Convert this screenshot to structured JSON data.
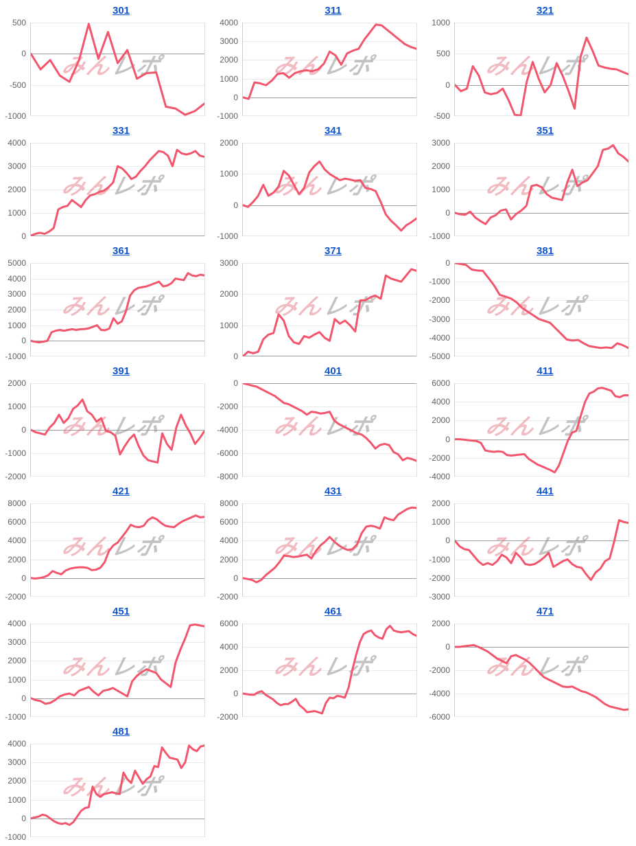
{
  "watermark": {
    "pink": "みん",
    "gray": "レポ"
  },
  "style": {
    "line_color": "#f2566d",
    "title_color": "#1155cc",
    "grid_color": "#e9e9e9",
    "zero_color": "#9e9e9e",
    "axis_color": "#cccccc",
    "tick_color": "#616161",
    "background": "#ffffff"
  },
  "chart_data": [
    {
      "type": "line",
      "title": "301",
      "xlabel": "",
      "ylabel": "",
      "yticks": [
        500,
        0,
        -500,
        -1000
      ],
      "ylim": [
        -1000,
        500
      ],
      "grid": true,
      "legend": "none",
      "values": [
        0,
        -250,
        -100,
        -350,
        -450,
        -100,
        480,
        -80,
        350,
        -150,
        60,
        -400,
        -310,
        -300,
        -850,
        -880,
        -980,
        -920,
        -800
      ]
    },
    {
      "type": "line",
      "title": "311",
      "xlabel": "",
      "ylabel": "",
      "yticks": [
        4000,
        3000,
        2000,
        1000,
        0,
        -1000
      ],
      "ylim": [
        -1000,
        4000
      ],
      "grid": true,
      "legend": "none",
      "values": [
        0,
        -80,
        800,
        750,
        650,
        900,
        1250,
        1300,
        1050,
        1300,
        1400,
        1450,
        1400,
        1500,
        1800,
        2450,
        2250,
        1750,
        2350,
        2500,
        2600,
        3100,
        3500,
        3900,
        3850,
        3600,
        3350,
        3100,
        2850,
        2700,
        2600
      ]
    },
    {
      "type": "line",
      "title": "321",
      "xlabel": "",
      "ylabel": "",
      "yticks": [
        1000,
        500,
        0,
        -500
      ],
      "ylim": [
        -500,
        1000
      ],
      "grid": true,
      "legend": "none",
      "values": [
        0,
        -100,
        -60,
        300,
        150,
        -120,
        -150,
        -130,
        -60,
        -250,
        -480,
        -490,
        50,
        370,
        100,
        -120,
        0,
        350,
        150,
        -100,
        -380,
        450,
        760,
        550,
        310,
        280,
        260,
        250,
        210,
        170
      ]
    },
    {
      "type": "line",
      "title": "331",
      "xlabel": "",
      "ylabel": "",
      "yticks": [
        4000,
        3000,
        2000,
        1000,
        0
      ],
      "ylim": [
        0,
        4000
      ],
      "grid": true,
      "legend": "none",
      "values": [
        30,
        100,
        150,
        100,
        200,
        350,
        1150,
        1250,
        1300,
        1550,
        1400,
        1250,
        1550,
        1750,
        1800,
        1900,
        1950,
        2100,
        2300,
        3000,
        2900,
        2700,
        2450,
        2550,
        2800,
        3000,
        3250,
        3450,
        3650,
        3600,
        3450,
        3000,
        3700,
        3550,
        3500,
        3550,
        3650,
        3450,
        3400
      ]
    },
    {
      "type": "line",
      "title": "341",
      "xlabel": "",
      "ylabel": "",
      "yticks": [
        2000,
        1000,
        0,
        -1000
      ],
      "ylim": [
        -1000,
        2000
      ],
      "grid": true,
      "legend": "none",
      "values": [
        0,
        -60,
        100,
        300,
        650,
        300,
        400,
        600,
        1100,
        950,
        650,
        350,
        550,
        1050,
        1250,
        1400,
        1150,
        1000,
        900,
        800,
        850,
        820,
        780,
        800,
        550,
        520,
        450,
        100,
        -300,
        -500,
        -650,
        -820,
        -650,
        -550,
        -430
      ]
    },
    {
      "type": "line",
      "title": "351",
      "xlabel": "",
      "ylabel": "",
      "yticks": [
        3000,
        2000,
        1000,
        0,
        -1000
      ],
      "ylim": [
        -1000,
        3000
      ],
      "grid": true,
      "legend": "none",
      "values": [
        0,
        -60,
        -80,
        50,
        -200,
        -350,
        -480,
        -200,
        -100,
        100,
        150,
        -280,
        -50,
        100,
        300,
        1150,
        1200,
        1100,
        800,
        650,
        600,
        550,
        1300,
        1850,
        1150,
        1300,
        1400,
        1700,
        2000,
        2700,
        2750,
        2900,
        2550,
        2400,
        2200
      ]
    },
    {
      "type": "line",
      "title": "361",
      "xlabel": "",
      "ylabel": "",
      "yticks": [
        5000,
        4000,
        3000,
        2000,
        1000,
        0,
        -1000
      ],
      "ylim": [
        -1000,
        5000
      ],
      "grid": true,
      "legend": "none",
      "values": [
        0,
        -60,
        -100,
        -50,
        0,
        550,
        650,
        700,
        650,
        700,
        750,
        700,
        750,
        760,
        800,
        900,
        1000,
        700,
        680,
        800,
        1450,
        1100,
        1250,
        1900,
        2900,
        3250,
        3400,
        3450,
        3500,
        3600,
        3700,
        3800,
        3500,
        3550,
        3700,
        4000,
        3950,
        3900,
        4350,
        4200,
        4150,
        4250,
        4200
      ]
    },
    {
      "type": "line",
      "title": "371",
      "xlabel": "",
      "ylabel": "",
      "yticks": [
        3000,
        2000,
        1000,
        0
      ],
      "ylim": [
        0,
        3000
      ],
      "grid": true,
      "legend": "none",
      "values": [
        0,
        150,
        100,
        150,
        550,
        700,
        750,
        1350,
        1150,
        650,
        450,
        400,
        650,
        600,
        700,
        780,
        600,
        500,
        1200,
        1050,
        1150,
        1000,
        800,
        1800,
        1800,
        1900,
        1950,
        1850,
        2600,
        2500,
        2450,
        2400,
        2600,
        2800,
        2750
      ]
    },
    {
      "type": "line",
      "title": "381",
      "xlabel": "",
      "ylabel": "",
      "yticks": [
        0,
        -1000,
        -2000,
        -3000,
        -4000,
        -5000
      ],
      "ylim": [
        -5000,
        0
      ],
      "grid": true,
      "legend": "none",
      "values": [
        0,
        -50,
        -100,
        -350,
        -400,
        -420,
        -800,
        -1200,
        -1700,
        -1800,
        -1900,
        -2100,
        -2400,
        -2600,
        -2800,
        -3000,
        -3100,
        -3200,
        -3500,
        -3800,
        -4100,
        -4150,
        -4120,
        -4300,
        -4450,
        -4500,
        -4550,
        -4520,
        -4550,
        -4300,
        -4400,
        -4550
      ]
    },
    {
      "type": "line",
      "title": "391",
      "xlabel": "",
      "ylabel": "",
      "yticks": [
        2000,
        1000,
        0,
        -1000,
        -2000
      ],
      "ylim": [
        -2000,
        2000
      ],
      "grid": true,
      "legend": "none",
      "values": [
        0,
        -100,
        -150,
        -200,
        100,
        300,
        650,
        300,
        500,
        900,
        1050,
        1300,
        800,
        650,
        350,
        500,
        -50,
        -100,
        -250,
        -1050,
        -700,
        -400,
        -200,
        -700,
        -1100,
        -1300,
        -1350,
        -1400,
        -150,
        -600,
        -850,
        100,
        650,
        200,
        -150,
        -600,
        -350,
        -50
      ]
    },
    {
      "type": "line",
      "title": "401",
      "xlabel": "",
      "ylabel": "",
      "yticks": [
        0,
        -2000,
        -4000,
        -6000,
        -8000
      ],
      "ylim": [
        -8000,
        0
      ],
      "grid": true,
      "legend": "none",
      "values": [
        0,
        -100,
        -200,
        -300,
        -500,
        -700,
        -900,
        -1100,
        -1400,
        -1700,
        -1800,
        -2000,
        -2200,
        -2400,
        -2700,
        -2450,
        -2500,
        -2600,
        -2550,
        -2450,
        -3200,
        -3500,
        -3700,
        -3900,
        -4100,
        -4300,
        -4400,
        -4700,
        -5100,
        -5600,
        -5300,
        -5200,
        -5300,
        -5900,
        -6100,
        -6600,
        -6400,
        -6500,
        -6650
      ]
    },
    {
      "type": "line",
      "title": "411",
      "xlabel": "",
      "ylabel": "",
      "yticks": [
        6000,
        4000,
        2000,
        0,
        -2000,
        -4000
      ],
      "ylim": [
        -4000,
        6000
      ],
      "grid": true,
      "legend": "none",
      "values": [
        0,
        0,
        -50,
        -100,
        -150,
        -200,
        -400,
        -1200,
        -1300,
        -1350,
        -1300,
        -1350,
        -1700,
        -1750,
        -1700,
        -1650,
        -1600,
        -2100,
        -2400,
        -2700,
        -2900,
        -3100,
        -3300,
        -3550,
        -2800,
        -1500,
        -200,
        700,
        900,
        2500,
        4000,
        4900,
        5100,
        5450,
        5500,
        5350,
        5200,
        4600,
        4500,
        4700,
        4700
      ]
    },
    {
      "type": "line",
      "title": "421",
      "xlabel": "",
      "ylabel": "",
      "yticks": [
        8000,
        6000,
        4000,
        2000,
        0,
        -2000
      ],
      "ylim": [
        -2000,
        8000
      ],
      "grid": true,
      "legend": "none",
      "values": [
        0,
        -50,
        0,
        100,
        300,
        750,
        550,
        400,
        800,
        1000,
        1100,
        1150,
        1150,
        1100,
        850,
        900,
        1100,
        1700,
        2900,
        3500,
        3800,
        4400,
        5000,
        5700,
        5500,
        5450,
        5600,
        6200,
        6500,
        6300,
        5900,
        5600,
        5500,
        5450,
        5800,
        6100,
        6300,
        6500,
        6700,
        6500,
        6550
      ]
    },
    {
      "type": "line",
      "title": "431",
      "xlabel": "",
      "ylabel": "",
      "yticks": [
        8000,
        6000,
        4000,
        2000,
        0,
        -2000
      ],
      "ylim": [
        -2000,
        8000
      ],
      "grid": true,
      "legend": "none",
      "values": [
        0,
        -100,
        -200,
        -450,
        -200,
        300,
        700,
        1100,
        1700,
        2400,
        2350,
        2250,
        2300,
        2400,
        2500,
        2100,
        2900,
        3500,
        3900,
        4400,
        3900,
        3500,
        3200,
        3000,
        3100,
        3600,
        4800,
        5500,
        5600,
        5500,
        5300,
        6500,
        6300,
        6200,
        6800,
        7100,
        7400,
        7550,
        7500
      ]
    },
    {
      "type": "line",
      "title": "441",
      "xlabel": "",
      "ylabel": "",
      "yticks": [
        2000,
        1000,
        0,
        -1000,
        -2000,
        -3000
      ],
      "ylim": [
        -3000,
        2000
      ],
      "grid": true,
      "legend": "none",
      "values": [
        0,
        -300,
        -450,
        -500,
        -800,
        -1100,
        -1300,
        -1200,
        -1300,
        -1100,
        -750,
        -900,
        -1200,
        -650,
        -900,
        -1250,
        -1300,
        -1250,
        -1100,
        -900,
        -650,
        -1400,
        -1250,
        -1100,
        -1000,
        -1250,
        -1400,
        -1450,
        -1800,
        -2100,
        -1700,
        -1500,
        -1100,
        -950,
        0,
        1100,
        1000,
        950
      ]
    },
    {
      "type": "line",
      "title": "451",
      "xlabel": "",
      "ylabel": "",
      "yticks": [
        4000,
        3000,
        2000,
        1000,
        0,
        -1000
      ],
      "ylim": [
        -1000,
        4000
      ],
      "grid": true,
      "legend": "none",
      "values": [
        0,
        -100,
        -150,
        -300,
        -250,
        -100,
        100,
        200,
        250,
        150,
        400,
        500,
        600,
        350,
        150,
        400,
        450,
        550,
        400,
        250,
        100,
        900,
        1200,
        1400,
        1550,
        1450,
        1350,
        1000,
        800,
        600,
        1900,
        2600,
        3200,
        3900,
        3950,
        3900,
        3850
      ]
    },
    {
      "type": "line",
      "title": "461",
      "xlabel": "",
      "ylabel": "",
      "yticks": [
        6000,
        4000,
        2000,
        0,
        -2000
      ],
      "ylim": [
        -2000,
        6000
      ],
      "grid": true,
      "legend": "none",
      "values": [
        0,
        -50,
        -100,
        -100,
        100,
        200,
        -100,
        -300,
        -500,
        -800,
        -1000,
        -900,
        -900,
        -700,
        -450,
        -1000,
        -1250,
        -1600,
        -1550,
        -1500,
        -1600,
        -1700,
        -800,
        -350,
        -400,
        -200,
        -250,
        -350,
        500,
        2000,
        3300,
        4400,
        5100,
        5300,
        5400,
        5000,
        4800,
        4700,
        5500,
        5800,
        5400,
        5300,
        5250,
        5300,
        5350,
        5100,
        4950
      ]
    },
    {
      "type": "line",
      "title": "471",
      "xlabel": "",
      "ylabel": "",
      "yticks": [
        2000,
        0,
        -2000,
        -4000,
        -6000
      ],
      "ylim": [
        -6000,
        2000
      ],
      "grid": true,
      "legend": "none",
      "values": [
        0,
        0,
        50,
        100,
        150,
        0,
        -200,
        -400,
        -700,
        -1000,
        -1200,
        -1400,
        -800,
        -700,
        -900,
        -1100,
        -1400,
        -1800,
        -2200,
        -2600,
        -2800,
        -3000,
        -3200,
        -3400,
        -3450,
        -3400,
        -3600,
        -3800,
        -3900,
        -4100,
        -4300,
        -4600,
        -4900,
        -5100,
        -5200,
        -5300,
        -5400,
        -5350
      ]
    },
    {
      "type": "line",
      "title": "481",
      "xlabel": "",
      "ylabel": "",
      "yticks": [
        4000,
        3000,
        2000,
        1000,
        0,
        -1000
      ],
      "ylim": [
        -1000,
        4000
      ],
      "grid": true,
      "legend": "none",
      "values": [
        0,
        50,
        100,
        200,
        150,
        0,
        -150,
        -250,
        -300,
        -250,
        -350,
        -200,
        100,
        400,
        550,
        600,
        1700,
        1300,
        1150,
        1300,
        1350,
        1400,
        1350,
        1300,
        2450,
        2100,
        1900,
        2550,
        2200,
        1850,
        2100,
        2250,
        2800,
        2750,
        3800,
        3500,
        3250,
        3200,
        3150,
        2700,
        3000,
        3900,
        3700,
        3600,
        3850,
        3900
      ]
    }
  ]
}
